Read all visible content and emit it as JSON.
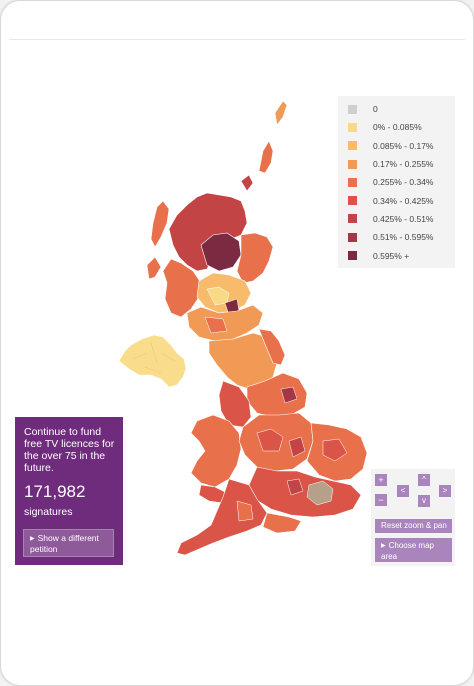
{
  "legend": {
    "items": [
      {
        "label": "0",
        "color": "#cfcfcf"
      },
      {
        "label": "0% - 0.085%",
        "color": "#f8da86"
      },
      {
        "label": "0.085% - 0.17%",
        "color": "#f7bb6b"
      },
      {
        "label": "0.17% - 0.255%",
        "color": "#f19a55"
      },
      {
        "label": "0.255% - 0.34%",
        "color": "#e8704a"
      },
      {
        "label": "0.34% - 0.425%",
        "color": "#da5547"
      },
      {
        "label": "0.425% - 0.51%",
        "color": "#c24445"
      },
      {
        "label": "0.51% - 0.595%",
        "color": "#a33745"
      },
      {
        "label": "0.595% +",
        "color": "#7b2a42"
      }
    ]
  },
  "petition": {
    "title": "Continue to fund free TV licences for the over 75 in the future.",
    "count": "171,982",
    "count_label": "signatures",
    "button_label": "Show a different petition"
  },
  "map_controls": {
    "zoom_in": "+",
    "zoom_out": "−",
    "pan_up": "^",
    "pan_down": "v",
    "pan_left": "<",
    "pan_right": ">",
    "reset_label": "Reset zoom & pan",
    "choose_area_label": "Choose map area"
  },
  "colors": {
    "petition_bg": "#6f2c7d",
    "control_bg": "#a984bd"
  }
}
